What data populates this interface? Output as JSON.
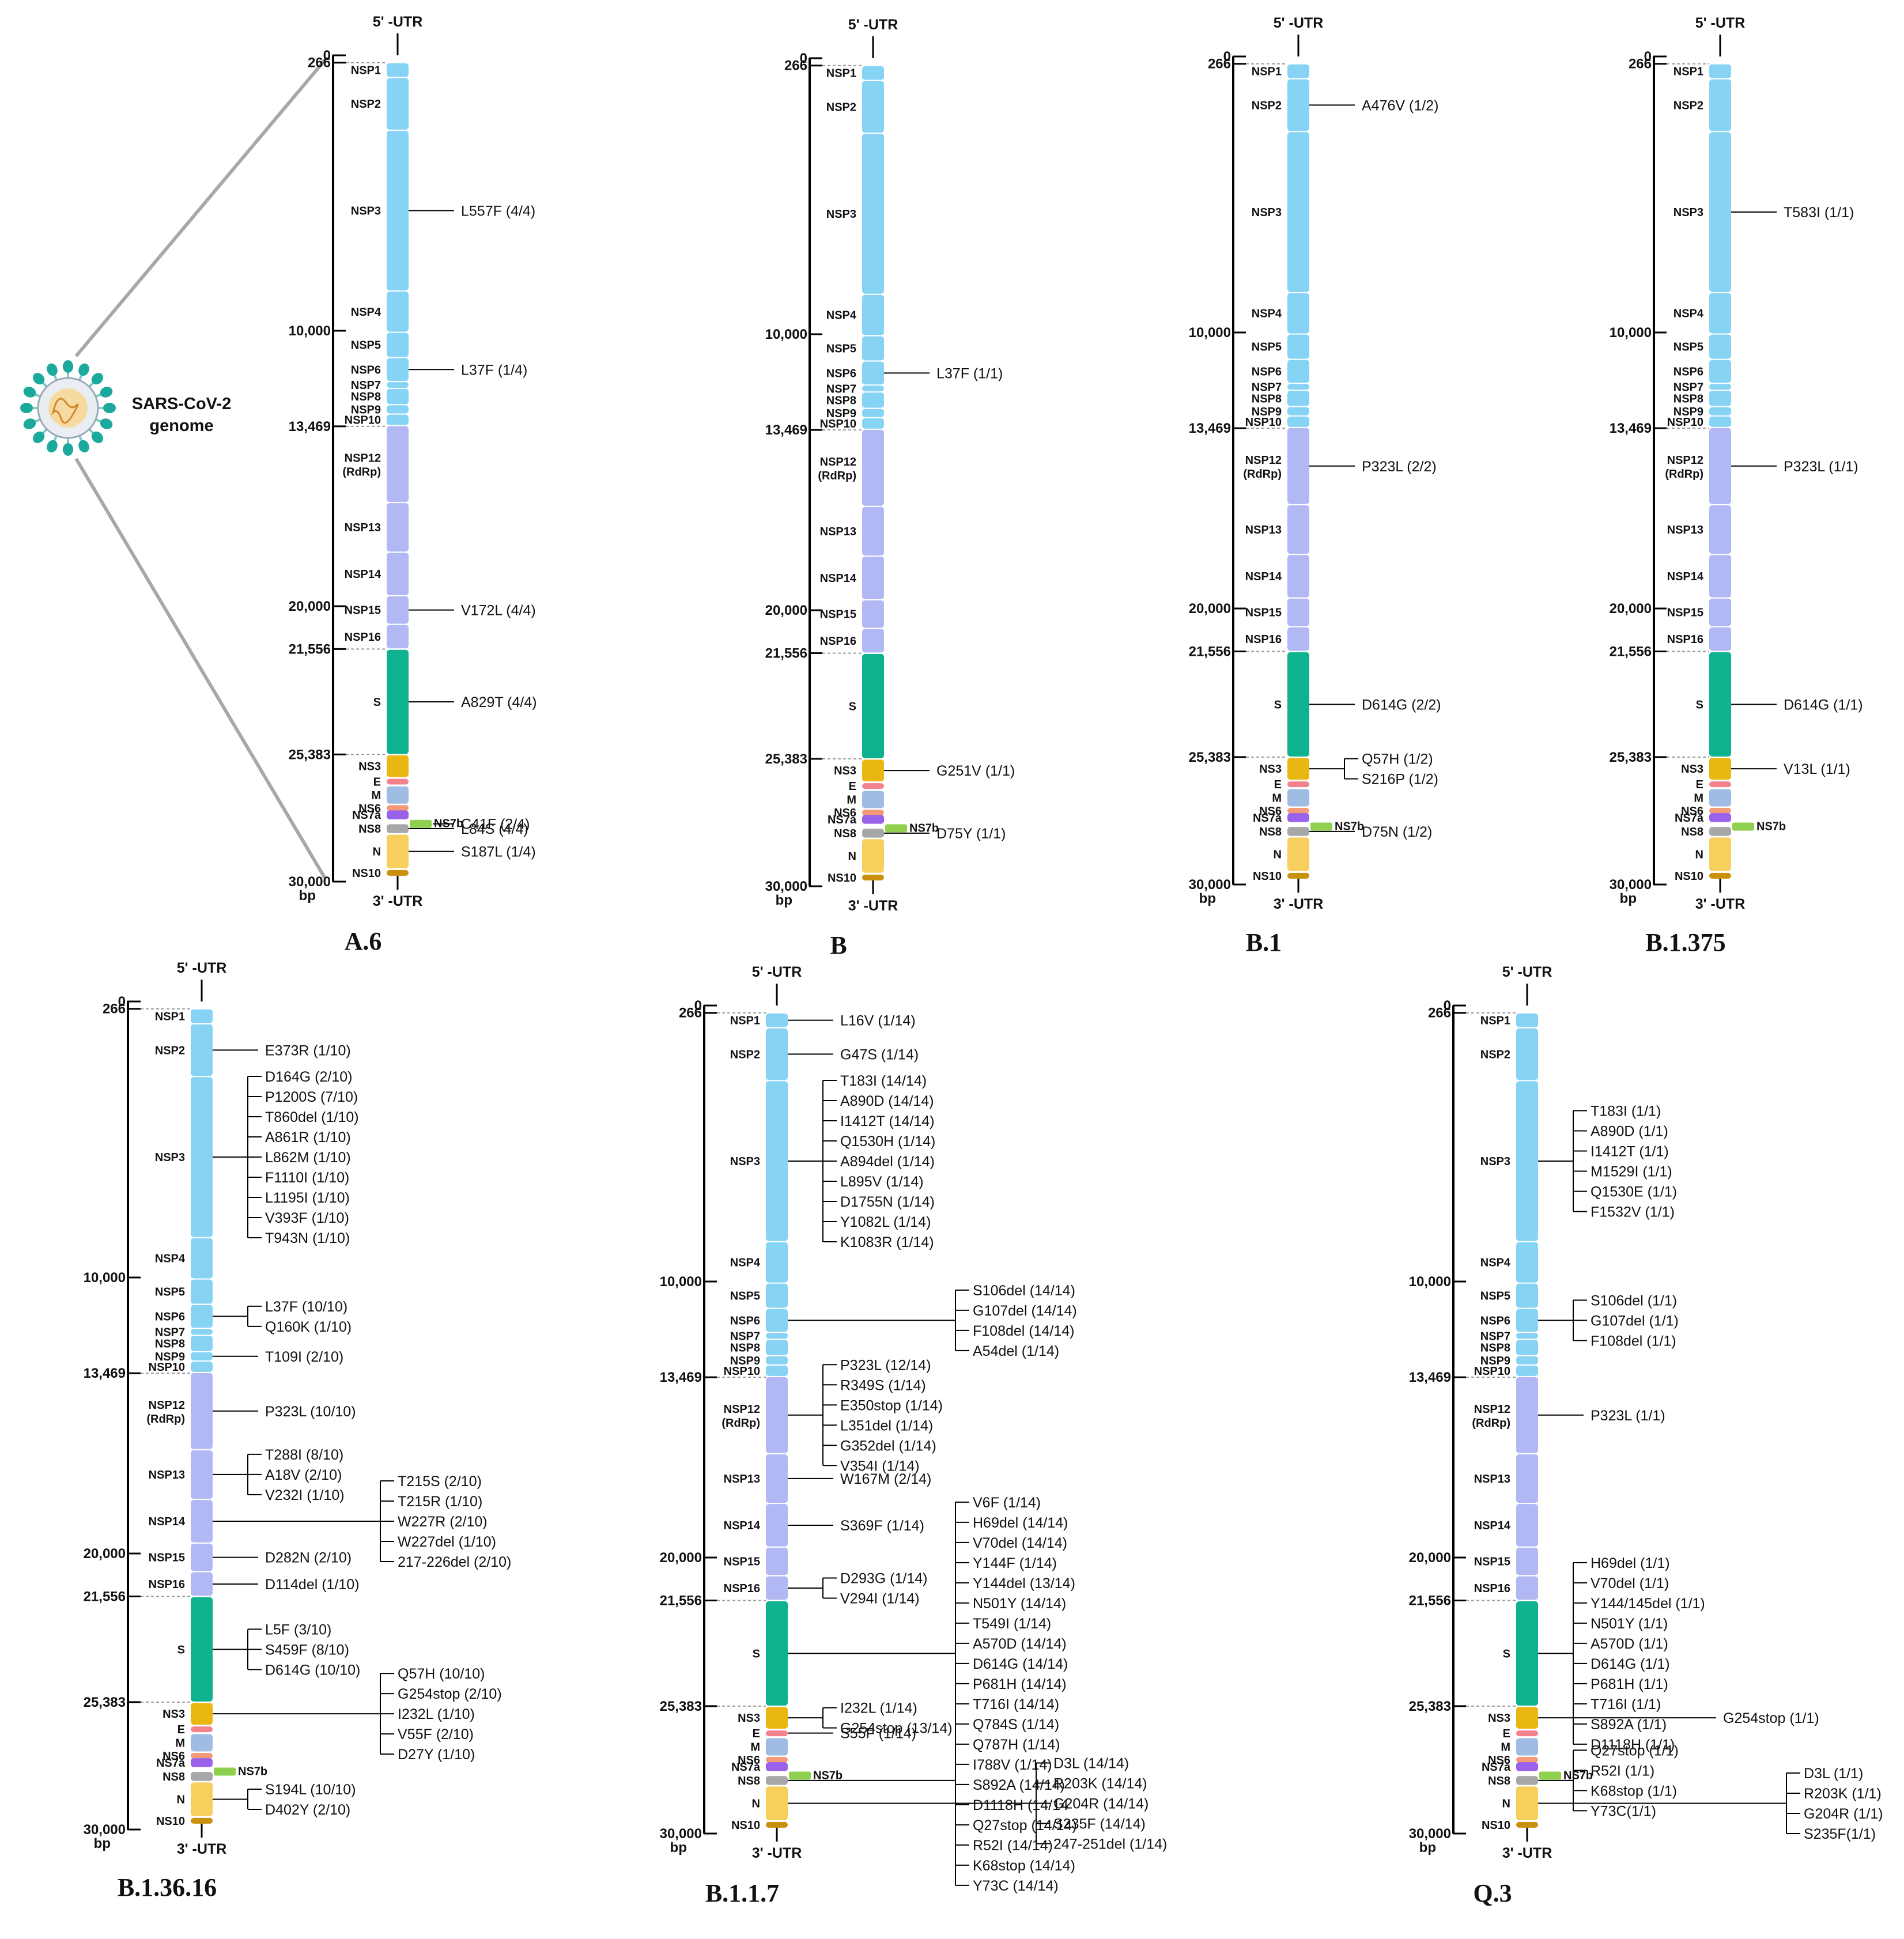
{
  "virus": {
    "label_line1": "SARS-CoV-2",
    "label_line2": "genome"
  },
  "utr5": "5' -UTR",
  "utr3": "3' -UTR",
  "unit": "bp",
  "axis_ticks": [
    {
      "label": "0",
      "pos": 0
    },
    {
      "label": "266",
      "pos": 266
    },
    {
      "label": "10,000",
      "pos": 10000
    },
    {
      "label": "13,469",
      "pos": 13469
    },
    {
      "label": "20,000",
      "pos": 20000
    },
    {
      "label": "21,556",
      "pos": 21556
    },
    {
      "label": "25,383",
      "pos": 25383
    },
    {
      "label": "30,000",
      "pos": 30000
    }
  ],
  "dashed_at": [
    266,
    13469,
    21556,
    25383
  ],
  "genes": [
    {
      "id": "nsp1",
      "label": "NSP1",
      "start": 266,
      "end": 805,
      "color": "#86d3f4"
    },
    {
      "id": "nsp2",
      "label": "NSP2",
      "start": 806,
      "end": 2719,
      "color": "#86d3f4"
    },
    {
      "id": "nsp3",
      "label": "NSP3",
      "start": 2720,
      "end": 8554,
      "color": "#86d3f4"
    },
    {
      "id": "nsp4",
      "label": "NSP4",
      "start": 8555,
      "end": 10054,
      "color": "#86d3f4"
    },
    {
      "id": "nsp5",
      "label": "NSP5",
      "start": 10055,
      "end": 10972,
      "color": "#86d3f4"
    },
    {
      "id": "nsp6",
      "label": "NSP6",
      "start": 10973,
      "end": 11842,
      "color": "#86d3f4"
    },
    {
      "id": "nsp7",
      "label": "NSP7",
      "start": 11843,
      "end": 12091,
      "color": "#86d3f4"
    },
    {
      "id": "nsp8",
      "label": "NSP8",
      "start": 12092,
      "end": 12685,
      "color": "#86d3f4"
    },
    {
      "id": "nsp9",
      "label": "NSP9",
      "start": 12686,
      "end": 13024,
      "color": "#86d3f4"
    },
    {
      "id": "nsp10",
      "label": "NSP10",
      "start": 13025,
      "end": 13441,
      "color": "#86d3f4"
    },
    {
      "id": "nsp12",
      "label": "NSP12",
      "label2": "(RdRp)",
      "start": 13442,
      "end": 16236,
      "color": "#b2b8f3"
    },
    {
      "id": "nsp13",
      "label": "NSP13",
      "start": 16237,
      "end": 18039,
      "color": "#b2b8f3"
    },
    {
      "id": "nsp14",
      "label": "NSP14",
      "start": 18040,
      "end": 19620,
      "color": "#b2b8f3"
    },
    {
      "id": "nsp15",
      "label": "NSP15",
      "start": 19621,
      "end": 20658,
      "color": "#b2b8f3"
    },
    {
      "id": "nsp16",
      "label": "NSP16",
      "start": 20659,
      "end": 21552,
      "color": "#b2b8f3"
    },
    {
      "id": "s",
      "label": "S",
      "start": 21563,
      "end": 25384,
      "color": "#0fb28e"
    },
    {
      "id": "ns3",
      "label": "NS3",
      "start": 25393,
      "end": 26220,
      "color": "#eab611"
    },
    {
      "id": "e",
      "label": "E",
      "start": 26245,
      "end": 26472,
      "color": "#f2838c"
    },
    {
      "id": "m",
      "label": "M",
      "start": 26523,
      "end": 27191,
      "color": "#9fbde3"
    },
    {
      "id": "ns6",
      "label": "NS6",
      "start": 27202,
      "end": 27387,
      "color": "#f59a78"
    },
    {
      "id": "ns7a",
      "label": "NS7a",
      "start": 27394,
      "end": 27759,
      "color": "#9a62ea"
    },
    {
      "id": "ns7b",
      "label": "NS7b",
      "start": 27756,
      "end": 27887,
      "color": "#8fd14f",
      "side": true
    },
    {
      "id": "ns8",
      "label": "NS8",
      "start": 27894,
      "end": 28259,
      "color": "#a7a7a7"
    },
    {
      "id": "n",
      "label": "N",
      "start": 28274,
      "end": 29533,
      "color": "#f7cf5c"
    },
    {
      "id": "ns10",
      "label": "NS10",
      "start": 29558,
      "end": 29674,
      "color": "#c9900c"
    }
  ],
  "panels": [
    {
      "name": "A.6",
      "mutations": [
        {
          "gene": "nsp3",
          "labels": [
            "L557F (4/4)"
          ]
        },
        {
          "gene": "nsp6",
          "labels": [
            "L37F (1/4)"
          ]
        },
        {
          "gene": "nsp15",
          "labels": [
            "V172L (4/4)"
          ]
        },
        {
          "gene": "s",
          "labels": [
            "A829T (4/4)"
          ]
        },
        {
          "gene": "ns7b",
          "labels": [
            "C41F (2/4)"
          ]
        },
        {
          "gene": "ns8",
          "labels": [
            "L84S (4/4)"
          ]
        },
        {
          "gene": "n",
          "labels": [
            "S187L (1/4)"
          ]
        }
      ]
    },
    {
      "name": "B",
      "mutations": [
        {
          "gene": "nsp6",
          "labels": [
            "L37F (1/1)"
          ]
        },
        {
          "gene": "ns3",
          "labels": [
            "G251V (1/1)"
          ]
        },
        {
          "gene": "ns8",
          "labels": [
            "D75Y (1/1)"
          ]
        }
      ]
    },
    {
      "name": "B.1",
      "mutations": [
        {
          "gene": "nsp2",
          "labels": [
            "A476V (1/2)"
          ]
        },
        {
          "gene": "nsp12",
          "labels": [
            "P323L (2/2)"
          ]
        },
        {
          "gene": "s",
          "labels": [
            "D614G (2/2)"
          ]
        },
        {
          "gene": "ns3",
          "labels": [
            "Q57H (1/2)",
            "S216P (1/2)"
          ]
        },
        {
          "gene": "ns8",
          "labels": [
            "D75N (1/2)"
          ]
        }
      ]
    },
    {
      "name": "B.1.375",
      "mutations": [
        {
          "gene": "nsp3",
          "labels": [
            "T583I (1/1)"
          ]
        },
        {
          "gene": "nsp12",
          "labels": [
            "P323L (1/1)"
          ]
        },
        {
          "gene": "s",
          "labels": [
            "D614G (1/1)"
          ]
        },
        {
          "gene": "ns3",
          "labels": [
            "V13L (1/1)"
          ]
        }
      ]
    },
    {
      "name": "B.1.36.16",
      "mutations": [
        {
          "gene": "nsp2",
          "labels": [
            "E373R (1/10)"
          ]
        },
        {
          "gene": "nsp3",
          "labels": [
            "D164G (2/10)",
            "P1200S (7/10)",
            "T860del (1/10)",
            "A861R (1/10)",
            "L862M (1/10)",
            "F1110I (1/10)",
            "L1195I (1/10)",
            "V393F (1/10)",
            "T943N (1/10)"
          ]
        },
        {
          "gene": "nsp6",
          "labels": [
            "L37F (10/10)",
            "Q160K (1/10)"
          ]
        },
        {
          "gene": "nsp9",
          "labels": [
            "T109I (2/10)"
          ]
        },
        {
          "gene": "nsp12",
          "labels": [
            "P323L (10/10)"
          ]
        },
        {
          "gene": "nsp13",
          "labels": [
            "T288I (8/10)",
            "A18V (2/10)",
            "V232I (1/10)"
          ]
        },
        {
          "gene": "nsp14",
          "labels": [
            "T215S (2/10)",
            "T215R (1/10)",
            "W227R (2/10)",
            "W227del (1/10)",
            "217-226del (2/10)"
          ],
          "far": true
        },
        {
          "gene": "nsp15",
          "labels": [
            "D282N (2/10)"
          ]
        },
        {
          "gene": "nsp16",
          "labels": [
            "D114del (1/10)"
          ]
        },
        {
          "gene": "s",
          "labels": [
            "L5F (3/10)",
            "S459F (8/10)",
            "D614G (10/10)"
          ]
        },
        {
          "gene": "ns3",
          "labels": [
            "Q57H (10/10)",
            "G254stop (2/10)",
            "I232L (1/10)",
            "V55F (2/10)",
            "D27Y (1/10)"
          ],
          "far": true
        },
        {
          "gene": "n",
          "labels": [
            "S194L (10/10)",
            "D402Y (2/10)"
          ]
        }
      ]
    },
    {
      "name": "B.1.1.7",
      "mutations": [
        {
          "gene": "nsp1",
          "labels": [
            "L16V (1/14)"
          ]
        },
        {
          "gene": "nsp2",
          "labels": [
            "G47S (1/14)"
          ]
        },
        {
          "gene": "nsp3",
          "labels": [
            "T183I (14/14)",
            "A890D (14/14)",
            "I1412T (14/14)",
            "Q1530H (1/14)",
            "A894del (1/14)",
            "L895V (1/14)",
            "D1755N (1/14)",
            "Y1082L (1/14)",
            "K1083R (1/14)"
          ]
        },
        {
          "gene": "nsp6",
          "labels": [
            "S106del (14/14)",
            "G107del (14/14)",
            "F108del (14/14)",
            "A54del (1/14)"
          ],
          "far": true
        },
        {
          "gene": "nsp12",
          "labels": [
            "P323L (12/14)",
            "R349S (1/14)",
            "E350stop (1/14)",
            "L351del (1/14)",
            "G352del (1/14)",
            "V354I (1/14)"
          ]
        },
        {
          "gene": "nsp13",
          "labels": [
            "W167M (2/14)"
          ]
        },
        {
          "gene": "nsp14",
          "labels": [
            "S369F (1/14)"
          ]
        },
        {
          "gene": "nsp16",
          "labels": [
            "D293G (1/14)",
            "V294I (1/14)"
          ]
        },
        {
          "gene": "s",
          "labels": [
            "V6F (1/14)",
            "H69del (14/14)",
            "V70del (14/14)",
            "Y144F (1/14)",
            "Y144del (13/14)",
            "N501Y (14/14)",
            "T549I (1/14)",
            "A570D (14/14)",
            "D614G (14/14)",
            "P681H (14/14)",
            "T716I (14/14)",
            "Q784S (1/14)",
            "Q787H (1/14)",
            "I788V (1/14)",
            "S892A (14/14)",
            "D1118H (14/14"
          ],
          "far": true
        },
        {
          "gene": "ns3",
          "labels": [
            "I232L (1/14)",
            "G254stop (13/14)"
          ]
        },
        {
          "gene": "e",
          "labels": [
            "S55F (1/14)"
          ]
        },
        {
          "gene": "ns8",
          "labels": [
            "Q27stop (14/14)",
            "R52I (14/14)",
            "K68stop (14/14)",
            "Y73C (14/14)"
          ],
          "far": true
        },
        {
          "gene": "n",
          "labels": [
            "D3L (14/14)",
            "R203K (14/14)",
            "G204R (14/14)",
            "S235F (14/14)",
            "247-251del (1/14)"
          ],
          "far2": true
        }
      ]
    },
    {
      "name": "Q.3",
      "mutations": [
        {
          "gene": "nsp3",
          "labels": [
            "T183I (1/1)",
            "A890D (1/1)",
            "I1412T (1/1)",
            "M1529I (1/1)",
            "Q1530E (1/1)",
            "F1532V (1/1)"
          ]
        },
        {
          "gene": "nsp6",
          "labels": [
            "S106del (1/1)",
            "G107del (1/1)",
            "F108del (1/1)"
          ]
        },
        {
          "gene": "nsp12",
          "labels": [
            "P323L (1/1)"
          ]
        },
        {
          "gene": "s",
          "labels": [
            "H69del (1/1)",
            "V70del (1/1)",
            "Y144/145del (1/1)",
            "N501Y (1/1)",
            "A570D (1/1)",
            "D614G (1/1)",
            "P681H (1/1)",
            "T716I (1/1)",
            "S892A (1/1)",
            "D1118H (1/1)"
          ]
        },
        {
          "gene": "ns3",
          "labels": [
            "G254stop (1/1)"
          ],
          "far": true
        },
        {
          "gene": "ns8",
          "labels": [
            "Q27stop (1/1)",
            "R52I (1/1)",
            "K68stop (1/1)",
            "Y73C(1/1)"
          ]
        },
        {
          "gene": "n",
          "labels": [
            "D3L (1/1)",
            "R203K (1/1)",
            "G204R (1/1)",
            "S235F(1/1)"
          ],
          "far2": true
        }
      ]
    }
  ]
}
